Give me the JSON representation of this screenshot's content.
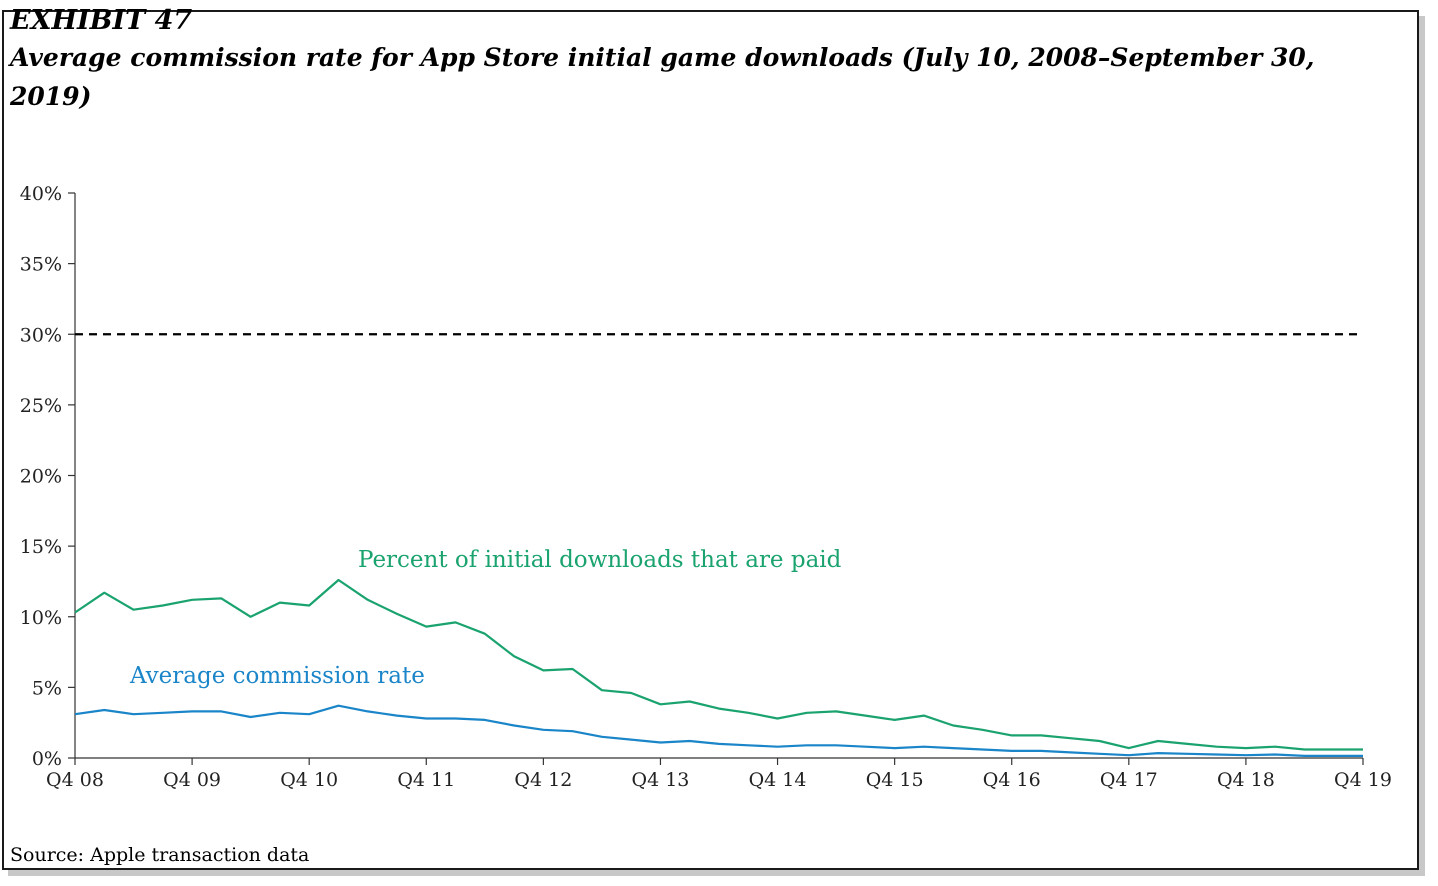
{
  "header": {
    "exhibit": "EXHIBIT 47",
    "title": "Average commission rate for App Store initial game downloads (July 10, 2008–September 30, 2019)"
  },
  "footer": {
    "source": "Source: Apple transaction data"
  },
  "chart_data": {
    "type": "line",
    "ylim": [
      0,
      40
    ],
    "yticks": [
      "0%",
      "5%",
      "10%",
      "15%",
      "20%",
      "25%",
      "30%",
      "35%",
      "40%"
    ],
    "xticks": [
      "Q4 08",
      "Q4 09",
      "Q4 10",
      "Q4 11",
      "Q4 12",
      "Q4 13",
      "Q4 14",
      "Q4 15",
      "Q4 16",
      "Q4 17",
      "Q4 18",
      "Q4 19"
    ],
    "x": [
      "Q4 08",
      "Q1 09",
      "Q2 09",
      "Q3 09",
      "Q4 09",
      "Q1 10",
      "Q2 10",
      "Q3 10",
      "Q4 10",
      "Q1 11",
      "Q2 11",
      "Q3 11",
      "Q4 11",
      "Q1 12",
      "Q2 12",
      "Q3 12",
      "Q4 12",
      "Q1 13",
      "Q2 13",
      "Q3 13",
      "Q4 13",
      "Q1 14",
      "Q2 14",
      "Q3 14",
      "Q4 14",
      "Q1 15",
      "Q2 15",
      "Q3 15",
      "Q4 15",
      "Q1 16",
      "Q2 16",
      "Q3 16",
      "Q4 16",
      "Q1 17",
      "Q2 17",
      "Q3 17",
      "Q4 17",
      "Q1 18",
      "Q2 18",
      "Q3 18",
      "Q4 18",
      "Q1 19",
      "Q2 19",
      "Q3 19",
      "Q4 19"
    ],
    "series": [
      {
        "name": "Percent of initial downloads that are paid",
        "color": "#1aa36f",
        "values": [
          10.3,
          11.7,
          10.5,
          10.8,
          11.2,
          11.3,
          10.0,
          11.0,
          10.8,
          12.6,
          11.2,
          10.2,
          9.3,
          9.6,
          8.8,
          7.2,
          6.2,
          6.3,
          4.8,
          4.6,
          3.8,
          4.0,
          3.5,
          3.2,
          2.8,
          3.2,
          3.3,
          3.0,
          2.7,
          3.0,
          2.3,
          2.0,
          1.6,
          1.6,
          1.4,
          1.2,
          0.7,
          1.2,
          1.0,
          0.8,
          0.7,
          0.8,
          0.6,
          0.6,
          0.6
        ]
      },
      {
        "name": "Average commission rate",
        "color": "#1a85c8",
        "values": [
          3.1,
          3.4,
          3.1,
          3.2,
          3.3,
          3.3,
          2.9,
          3.2,
          3.1,
          3.7,
          3.3,
          3.0,
          2.8,
          2.8,
          2.7,
          2.3,
          2.0,
          1.9,
          1.5,
          1.3,
          1.1,
          1.2,
          1.0,
          0.9,
          0.8,
          0.9,
          0.9,
          0.8,
          0.7,
          0.8,
          0.7,
          0.6,
          0.5,
          0.5,
          0.4,
          0.3,
          0.2,
          0.35,
          0.3,
          0.25,
          0.2,
          0.25,
          0.15,
          0.15,
          0.15
        ]
      }
    ],
    "reference_line": {
      "value": 30,
      "style": "dashed",
      "color": "#000000"
    },
    "annotations": [
      {
        "text": "Percent of initial downloads that are paid",
        "series": 0
      },
      {
        "text": "Average commission rate",
        "series": 1
      }
    ]
  }
}
